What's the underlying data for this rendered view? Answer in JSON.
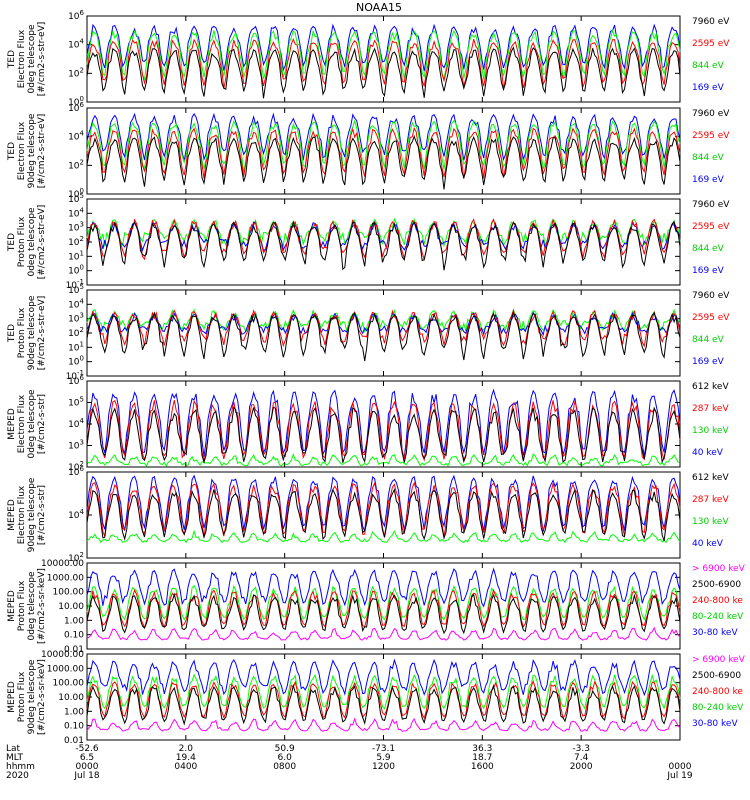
{
  "title": "NOAA15",
  "colors": {
    "black": "#000000",
    "red": "#ff0000",
    "green": "#00ff00",
    "blue": "#0000ff",
    "magenta": "#ff00ff"
  },
  "chart_data": [
    {
      "type": "line",
      "name": "panel-1",
      "ylabel_lines": [
        "TED",
        "Electron Flux",
        "0deg telescope",
        "[#/cm2-s-str-eV]"
      ],
      "ylim": [
        1,
        1000000
      ],
      "log": true,
      "tick_labels": [
        "10^0",
        "10^2",
        "10^4",
        "10^6"
      ],
      "legend": [
        {
          "label": "7960 eV",
          "color": "#000000"
        },
        {
          "label": "2595 eV",
          "color": "#ff0000"
        },
        {
          "label": "844 eV",
          "color": "#00ff00"
        },
        {
          "label": "169 eV",
          "color": "#0000ff"
        }
      ],
      "series": [
        {
          "color": "#0000ff",
          "base": 300,
          "peak": 200000,
          "noise": 1.0
        },
        {
          "color": "#00ff00",
          "base": 20,
          "peak": 80000,
          "noise": 1.2
        },
        {
          "color": "#ff0000",
          "base": 8,
          "peak": 20000,
          "noise": 1.2
        },
        {
          "color": "#000000",
          "base": 2,
          "peak": 5000,
          "noise": 1.5
        }
      ]
    },
    {
      "type": "line",
      "name": "panel-2",
      "ylabel_lines": [
        "TED",
        "Electron Flux",
        "90deg telescope",
        "[#/cm2-s-str-eV]"
      ],
      "ylim": [
        1,
        1000000
      ],
      "log": true,
      "tick_labels": [
        "10^0",
        "10^2",
        "10^4",
        "10^6"
      ],
      "legend": [
        {
          "label": "7960 eV",
          "color": "#000000"
        },
        {
          "label": "2595 eV",
          "color": "#ff0000"
        },
        {
          "label": "844 eV",
          "color": "#00ff00"
        },
        {
          "label": "169 eV",
          "color": "#0000ff"
        }
      ],
      "series": [
        {
          "color": "#0000ff",
          "base": 400,
          "peak": 300000,
          "noise": 1.0
        },
        {
          "color": "#00ff00",
          "base": 30,
          "peak": 100000,
          "noise": 1.2
        },
        {
          "color": "#ff0000",
          "base": 10,
          "peak": 30000,
          "noise": 1.2
        },
        {
          "color": "#000000",
          "base": 3,
          "peak": 8000,
          "noise": 1.5
        }
      ]
    },
    {
      "type": "line",
      "name": "panel-3",
      "ylabel_lines": [
        "TED",
        "Proton Flux",
        "0deg telescope",
        "[#/cm2-s-str-eV]"
      ],
      "ylim": [
        0.1,
        100000
      ],
      "log": true,
      "tick_labels": [
        "10^-1",
        "10^0",
        "10^1",
        "10^2",
        "10^3",
        "10^4",
        "10^5"
      ],
      "legend": [
        {
          "label": "7960 eV",
          "color": "#000000"
        },
        {
          "label": "2595 eV",
          "color": "#ff0000"
        },
        {
          "label": "844 eV",
          "color": "#00ff00"
        },
        {
          "label": "169 eV",
          "color": "#0000ff"
        }
      ],
      "series": [
        {
          "color": "#00ff00",
          "base": 150,
          "peak": 3000,
          "noise": 1.0
        },
        {
          "color": "#0000ff",
          "base": 60,
          "peak": 2000,
          "noise": 0.8
        },
        {
          "color": "#ff0000",
          "base": 15,
          "peak": 3000,
          "noise": 1.0
        },
        {
          "color": "#000000",
          "base": 3,
          "peak": 2000,
          "noise": 1.6
        }
      ]
    },
    {
      "type": "line",
      "name": "panel-4",
      "ylabel_lines": [
        "TED",
        "Proton Flux",
        "90deg telescope",
        "[#/cm2-s-str-eV]"
      ],
      "ylim": [
        0.1,
        100000
      ],
      "log": true,
      "tick_labels": [
        "10^-1",
        "10^0",
        "10^1",
        "10^2",
        "10^3",
        "10^4",
        "10^5"
      ],
      "legend": [
        {
          "label": "7960 eV",
          "color": "#000000"
        },
        {
          "label": "2595 eV",
          "color": "#ff0000"
        },
        {
          "label": "844 eV",
          "color": "#00ff00"
        },
        {
          "label": "169 eV",
          "color": "#0000ff"
        }
      ],
      "series": [
        {
          "color": "#00ff00",
          "base": 300,
          "peak": 3000,
          "noise": 0.8
        },
        {
          "color": "#0000ff",
          "base": 150,
          "peak": 2000,
          "noise": 0.6
        },
        {
          "color": "#ff0000",
          "base": 30,
          "peak": 3000,
          "noise": 1.0
        },
        {
          "color": "#000000",
          "base": 3,
          "peak": 2000,
          "noise": 1.6
        }
      ]
    },
    {
      "type": "line",
      "name": "panel-5",
      "ylabel_lines": [
        "MEPED",
        "Electron Flux",
        "0deg telescope",
        "[#/cm2-s-str]"
      ],
      "ylim": [
        100,
        1000000
      ],
      "log": true,
      "tick_labels": [
        "10^2",
        "10^3",
        "10^4",
        "10^5",
        "10^6"
      ],
      "legend": [
        {
          "label": "612 keV",
          "color": "#000000"
        },
        {
          "label": "287 keV",
          "color": "#ff0000"
        },
        {
          "label": "130 keV",
          "color": "#00ff00"
        },
        {
          "label": "40 keV",
          "color": "#0000ff"
        }
      ],
      "series": [
        {
          "color": "#00ff00",
          "base": 140,
          "peak": 200,
          "noise": 0.2
        },
        {
          "color": "#0000ff",
          "base": 300,
          "peak": 300000,
          "noise": 0.5
        },
        {
          "color": "#ff0000",
          "base": 250,
          "peak": 100000,
          "noise": 0.4
        },
        {
          "color": "#000000",
          "base": 250,
          "peak": 50000,
          "noise": 0.6
        }
      ]
    },
    {
      "type": "line",
      "name": "panel-6",
      "ylabel_lines": [
        "MEPED",
        "Electron Flux",
        "90deg telescope",
        "[#/cm2-s-str]"
      ],
      "ylim": [
        10,
        1000000
      ],
      "log": true,
      "tick_labels": [
        "10^2",
        "10^4",
        "10^6"
      ],
      "legend": [
        {
          "label": "612 keV",
          "color": "#000000"
        },
        {
          "label": "287 keV",
          "color": "#ff0000"
        },
        {
          "label": "130 keV",
          "color": "#00ff00"
        },
        {
          "label": "40 keV",
          "color": "#0000ff"
        }
      ],
      "series": [
        {
          "color": "#00ff00",
          "base": 100,
          "peak": 200,
          "noise": 0.2
        },
        {
          "color": "#0000ff",
          "base": 300,
          "peak": 500000,
          "noise": 0.6
        },
        {
          "color": "#ff0000",
          "base": 200,
          "peak": 200000,
          "noise": 0.6
        },
        {
          "color": "#000000",
          "base": 150,
          "peak": 80000,
          "noise": 0.8
        }
      ]
    },
    {
      "type": "line",
      "name": "panel-7",
      "ylabel_lines": [
        "MEPED",
        "Proton Flux",
        "0deg telescope",
        "[#/cm2-s-sr-keV]"
      ],
      "ylim": [
        0.01,
        10000
      ],
      "log": true,
      "tick_labels": [
        "0.01",
        "0.10",
        "1.00",
        "10.00",
        "100.00",
        "1000.00",
        "10000.00"
      ],
      "legend": [
        {
          "label": "> 6900 keV",
          "color": "#ff00ff"
        },
        {
          "label": "2500-6900",
          "color": "#000000"
        },
        {
          "label": "240-800 ke",
          "color": "#ff0000"
        },
        {
          "label": "80-240 keV",
          "color": "#00ff00"
        },
        {
          "label": "30-80 keV",
          "color": "#0000ff"
        }
      ],
      "series": [
        {
          "color": "#0000ff",
          "base": 20,
          "peak": 3000,
          "noise": 0.8
        },
        {
          "color": "#00ff00",
          "base": 1.5,
          "peak": 200,
          "noise": 0.3
        },
        {
          "color": "#ff0000",
          "base": 0.4,
          "peak": 100,
          "noise": 0.3
        },
        {
          "color": "#000000",
          "base": 0.2,
          "peak": 50,
          "noise": 0.5
        },
        {
          "color": "#ff00ff",
          "base": 0.05,
          "peak": 0.2,
          "noise": 0.2
        }
      ]
    },
    {
      "type": "line",
      "name": "panel-8",
      "ylabel_lines": [
        "MEPED",
        "Proton Flux",
        "90deg telescope",
        "[#/cm2-s-sr-keV]"
      ],
      "ylim": [
        0.01,
        10000
      ],
      "log": true,
      "tick_labels": [
        "0.01",
        "0.10",
        "1.00",
        "10.00",
        "100.00",
        "1000.00",
        "10000.00"
      ],
      "legend": [
        {
          "label": "> 6900 keV",
          "color": "#ff00ff"
        },
        {
          "label": "2500-6900",
          "color": "#000000"
        },
        {
          "label": "240-800 ke",
          "color": "#ff0000"
        },
        {
          "label": "80-240 keV",
          "color": "#00ff00"
        },
        {
          "label": "30-80 keV",
          "color": "#0000ff"
        }
      ],
      "series": [
        {
          "color": "#0000ff",
          "base": 30,
          "peak": 3000,
          "noise": 0.8
        },
        {
          "color": "#00ff00",
          "base": 2,
          "peak": 300,
          "noise": 0.3
        },
        {
          "color": "#ff0000",
          "base": 0.4,
          "peak": 100,
          "noise": 0.3
        },
        {
          "color": "#000000",
          "base": 0.2,
          "peak": 50,
          "noise": 0.5
        },
        {
          "color": "#ff00ff",
          "base": 0.05,
          "peak": 0.2,
          "noise": 0.2
        }
      ]
    }
  ],
  "x_axis": {
    "row_labels": [
      "Lat",
      "MLT",
      "hhmm",
      "2020"
    ],
    "ticks": [
      {
        "lat": "-52.6",
        "mlt": "6.5",
        "hhmm": "0000",
        "date": "Jul 18"
      },
      {
        "lat": "2.0",
        "mlt": "19.4",
        "hhmm": "0400",
        "date": ""
      },
      {
        "lat": "50.9",
        "mlt": "6.0",
        "hhmm": "0800",
        "date": ""
      },
      {
        "lat": "-73.1",
        "mlt": "5.9",
        "hhmm": "1200",
        "date": ""
      },
      {
        "lat": "36.3",
        "mlt": "18.7",
        "hhmm": "1600",
        "date": ""
      },
      {
        "lat": "-3.3",
        "mlt": "7.4",
        "hhmm": "2000",
        "date": ""
      },
      {
        "lat": "",
        "mlt": "",
        "hhmm": "0000",
        "date": "Jul 19"
      }
    ]
  }
}
